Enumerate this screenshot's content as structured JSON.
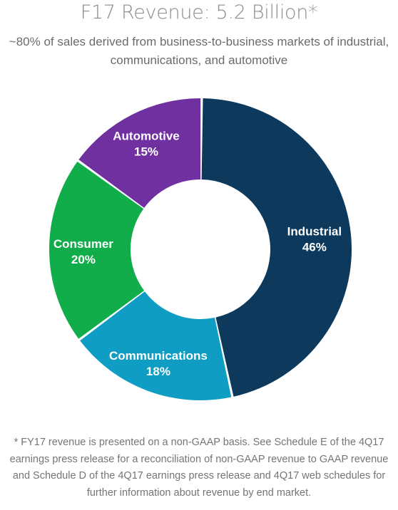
{
  "header": {
    "title": "F17 Revenue: 5.2 Billion*",
    "subtitle": "~80% of sales derived from business-to-business markets of industrial, communications, and automotive"
  },
  "chart_data": {
    "type": "pie",
    "donut": true,
    "unit": "%",
    "slices": [
      {
        "label": "Industrial",
        "value": 46,
        "value_label": "46%",
        "color": "#0d3a5c"
      },
      {
        "label": "Communications",
        "value": 18,
        "value_label": "18%",
        "color": "#0f9dc4"
      },
      {
        "label": "Consumer",
        "value": 20,
        "value_label": "20%",
        "color": "#12ad4b"
      },
      {
        "label": "Automotive",
        "value": 15,
        "value_label": "15%",
        "color": "#7030a0"
      }
    ]
  },
  "footnote": "* FY17 revenue is presented on a non-GAAP basis. See Schedule E of the 4Q17 earnings press release for a reconciliation of non-GAAP revenue to GAAP revenue and Schedule D of the 4Q17 earnings press release and 4Q17 web schedules for further information about revenue by end market."
}
